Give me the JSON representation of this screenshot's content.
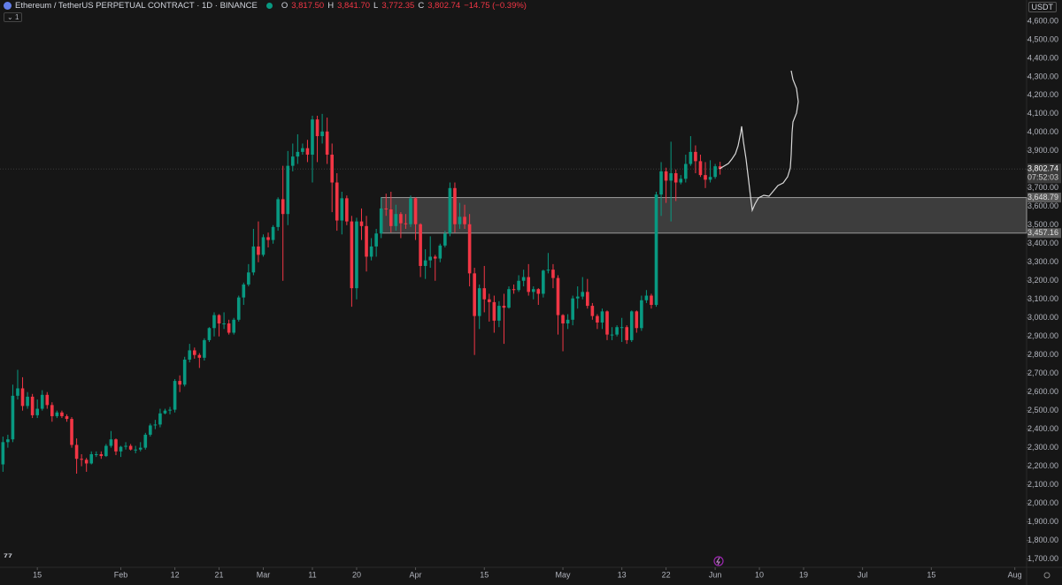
{
  "header": {
    "symbol": "Ethereum / TetherUS PERPETUAL CONTRACT · 1D · BINANCE",
    "open_label": "O",
    "open": "3,817.50",
    "high_label": "H",
    "high": "3,841.70",
    "low_label": "L",
    "low": "3,772.35",
    "close_label": "C",
    "close": "3,802.74",
    "change": "−14.75 (−0.39%)",
    "indicator_count": "1",
    "currency": "USDT"
  },
  "chart_data": {
    "type": "candlestick",
    "up_color": "#089981",
    "down_color": "#f23645",
    "x": [
      8,
      9,
      10,
      11,
      12,
      13,
      14,
      15,
      16,
      17,
      18,
      19,
      20,
      21,
      22,
      23,
      24,
      25,
      26,
      27,
      28,
      29,
      30,
      31,
      32,
      33,
      34,
      35,
      36,
      37,
      38,
      39,
      40,
      41,
      42,
      43,
      44,
      45,
      46,
      47,
      48,
      49,
      50,
      51,
      52,
      53,
      54,
      55,
      56,
      57,
      58,
      59,
      60,
      61,
      62,
      63,
      64,
      65,
      66,
      67,
      68,
      69,
      70,
      71,
      72,
      73,
      74,
      75,
      76,
      77,
      78,
      79,
      80,
      81,
      82,
      83,
      84,
      85,
      86,
      87,
      88,
      89,
      90,
      91,
      92,
      93,
      94,
      95,
      96,
      97,
      98,
      99,
      100,
      101,
      102,
      103,
      104,
      105,
      106,
      107,
      108,
      109,
      110,
      111,
      112,
      113,
      114,
      115,
      116,
      117,
      118,
      119,
      120,
      121,
      122,
      123,
      124,
      125,
      126,
      127,
      128,
      129,
      130,
      131,
      132,
      133,
      134,
      135,
      136,
      137,
      138,
      139,
      140,
      141,
      142,
      143,
      144,
      145,
      146,
      147,
      148,
      149,
      150,
      151,
      152,
      153,
      154
    ],
    "ohlc": [
      [
        2210,
        2360,
        2170,
        2330
      ],
      [
        2330,
        2370,
        2300,
        2345
      ],
      [
        2345,
        2640,
        2330,
        2580
      ],
      [
        2580,
        2720,
        2560,
        2620
      ],
      [
        2620,
        2680,
        2500,
        2525
      ],
      [
        2525,
        2600,
        2510,
        2575
      ],
      [
        2575,
        2590,
        2460,
        2475
      ],
      [
        2475,
        2560,
        2460,
        2510
      ],
      [
        2510,
        2610,
        2500,
        2585
      ],
      [
        2585,
        2600,
        2510,
        2530
      ],
      [
        2530,
        2545,
        2440,
        2470
      ],
      [
        2470,
        2500,
        2460,
        2490
      ],
      [
        2490,
        2500,
        2460,
        2470
      ],
      [
        2470,
        2480,
        2440,
        2455
      ],
      [
        2455,
        2465,
        2300,
        2315
      ],
      [
        2315,
        2350,
        2160,
        2240
      ],
      [
        2240,
        2265,
        2200,
        2235
      ],
      [
        2235,
        2245,
        2170,
        2215
      ],
      [
        2215,
        2280,
        2210,
        2265
      ],
      [
        2265,
        2280,
        2250,
        2265
      ],
      [
        2265,
        2280,
        2240,
        2255
      ],
      [
        2255,
        2320,
        2250,
        2310
      ],
      [
        2310,
        2390,
        2300,
        2345
      ],
      [
        2345,
        2350,
        2260,
        2280
      ],
      [
        2280,
        2310,
        2250,
        2305
      ],
      [
        2305,
        2330,
        2290,
        2310
      ],
      [
        2310,
        2320,
        2285,
        2290
      ],
      [
        2290,
        2310,
        2270,
        2290
      ],
      [
        2290,
        2330,
        2280,
        2300
      ],
      [
        2300,
        2380,
        2290,
        2370
      ],
      [
        2370,
        2430,
        2360,
        2420
      ],
      [
        2420,
        2450,
        2400,
        2425
      ],
      [
        2425,
        2510,
        2410,
        2485
      ],
      [
        2485,
        2510,
        2480,
        2500
      ],
      [
        2500,
        2520,
        2480,
        2505
      ],
      [
        2505,
        2670,
        2490,
        2660
      ],
      [
        2660,
        2690,
        2600,
        2640
      ],
      [
        2640,
        2790,
        2630,
        2775
      ],
      [
        2775,
        2860,
        2760,
        2825
      ],
      [
        2825,
        2840,
        2780,
        2800
      ],
      [
        2800,
        2810,
        2730,
        2785
      ],
      [
        2785,
        2890,
        2770,
        2880
      ],
      [
        2880,
        2950,
        2870,
        2945
      ],
      [
        2945,
        3030,
        2900,
        3015
      ],
      [
        3015,
        3020,
        2900,
        2970
      ],
      [
        2970,
        3030,
        2940,
        2970
      ],
      [
        2970,
        2990,
        2910,
        2920
      ],
      [
        2920,
        3000,
        2910,
        2990
      ],
      [
        2990,
        3120,
        2980,
        3110
      ],
      [
        3110,
        3190,
        3070,
        3180
      ],
      [
        3180,
        3290,
        3170,
        3245
      ],
      [
        3245,
        3480,
        3230,
        3385
      ],
      [
        3385,
        3520,
        3300,
        3340
      ],
      [
        3340,
        3450,
        3330,
        3435
      ],
      [
        3435,
        3460,
        3380,
        3420
      ],
      [
        3420,
        3500,
        3400,
        3490
      ],
      [
        3490,
        3650,
        3470,
        3640
      ],
      [
        3640,
        3820,
        3200,
        3560
      ],
      [
        3560,
        3900,
        3500,
        3820
      ],
      [
        3820,
        3940,
        3790,
        3870
      ],
      [
        3870,
        3990,
        3830,
        3895
      ],
      [
        3895,
        3940,
        3880,
        3915
      ],
      [
        3915,
        3960,
        3840,
        3880
      ],
      [
        3880,
        4090,
        3730,
        4070
      ],
      [
        4070,
        4090,
        3840,
        3980
      ],
      [
        3980,
        4100,
        3940,
        4005
      ],
      [
        4005,
        4080,
        3830,
        3880
      ],
      [
        3880,
        3940,
        3570,
        3730
      ],
      [
        3730,
        3780,
        3470,
        3525
      ],
      [
        3525,
        3680,
        3450,
        3645
      ],
      [
        3645,
        3660,
        3500,
        3520
      ],
      [
        3520,
        3550,
        3060,
        3160
      ],
      [
        3160,
        3540,
        3100,
        3520
      ],
      [
        3520,
        3590,
        3420,
        3495
      ],
      [
        3495,
        3550,
        3250,
        3330
      ],
      [
        3330,
        3430,
        3310,
        3385
      ],
      [
        3385,
        3480,
        3330,
        3455
      ],
      [
        3455,
        3650,
        3430,
        3590
      ],
      [
        3590,
        3670,
        3550,
        3585
      ],
      [
        3585,
        3680,
        3460,
        3495
      ],
      [
        3495,
        3610,
        3470,
        3560
      ],
      [
        3560,
        3570,
        3430,
        3510
      ],
      [
        3510,
        3560,
        3480,
        3505
      ],
      [
        3505,
        3660,
        3490,
        3645
      ],
      [
        3645,
        3650,
        3420,
        3505
      ],
      [
        3505,
        3510,
        3220,
        3280
      ],
      [
        3280,
        3370,
        3210,
        3310
      ],
      [
        3310,
        3440,
        3270,
        3330
      ],
      [
        3330,
        3340,
        3200,
        3320
      ],
      [
        3320,
        3400,
        3300,
        3390
      ],
      [
        3390,
        3470,
        3380,
        3455
      ],
      [
        3455,
        3730,
        3440,
        3700
      ],
      [
        3700,
        3730,
        3460,
        3505
      ],
      [
        3505,
        3620,
        3480,
        3545
      ],
      [
        3545,
        3610,
        3480,
        3505
      ],
      [
        3505,
        3560,
        3170,
        3240
      ],
      [
        3240,
        3270,
        2800,
        3010
      ],
      [
        3010,
        3180,
        2940,
        3160
      ],
      [
        3160,
        3280,
        3030,
        3100
      ],
      [
        3100,
        3130,
        2980,
        3085
      ],
      [
        3085,
        3120,
        2920,
        2985
      ],
      [
        2985,
        3090,
        2950,
        3065
      ],
      [
        3065,
        3130,
        2860,
        3055
      ],
      [
        3055,
        3170,
        3050,
        3155
      ],
      [
        3155,
        3180,
        3130,
        3150
      ],
      [
        3150,
        3230,
        3140,
        3200
      ],
      [
        3200,
        3260,
        3170,
        3220
      ],
      [
        3220,
        3290,
        3120,
        3140
      ],
      [
        3140,
        3170,
        3100,
        3155
      ],
      [
        3155,
        3160,
        3070,
        3130
      ],
      [
        3130,
        3260,
        3110,
        3255
      ],
      [
        3255,
        3350,
        3240,
        3260
      ],
      [
        3260,
        3290,
        3160,
        3215
      ],
      [
        3215,
        3230,
        2910,
        3015
      ],
      [
        3015,
        3020,
        2820,
        2970
      ],
      [
        2970,
        3020,
        2940,
        2990
      ],
      [
        2990,
        3120,
        2960,
        3105
      ],
      [
        3105,
        3170,
        3050,
        3115
      ],
      [
        3115,
        3220,
        3100,
        3140
      ],
      [
        3140,
        3210,
        3050,
        3065
      ],
      [
        3065,
        3080,
        2990,
        3010
      ],
      [
        3010,
        3020,
        2940,
        2975
      ],
      [
        2975,
        3050,
        2940,
        3035
      ],
      [
        3035,
        3040,
        2880,
        2910
      ],
      [
        2910,
        2950,
        2880,
        2910
      ],
      [
        2910,
        2960,
        2900,
        2950
      ],
      [
        2950,
        3000,
        2870,
        2950
      ],
      [
        2950,
        2960,
        2860,
        2880
      ],
      [
        2880,
        3040,
        2870,
        3035
      ],
      [
        3035,
        3040,
        2920,
        2945
      ],
      [
        2945,
        3120,
        2930,
        3095
      ],
      [
        3095,
        3150,
        3080,
        3120
      ],
      [
        3120,
        3130,
        3050,
        3070
      ],
      [
        3070,
        3680,
        3060,
        3665
      ],
      [
        3665,
        3840,
        3550,
        3790
      ],
      [
        3790,
        3810,
        3620,
        3740
      ],
      [
        3740,
        3950,
        3520,
        3780
      ],
      [
        3780,
        3800,
        3630,
        3730
      ],
      [
        3730,
        3770,
        3720,
        3750
      ],
      [
        3750,
        3880,
        3730,
        3830
      ],
      [
        3830,
        3980,
        3820,
        3895
      ],
      [
        3895,
        3930,
        3780,
        3845
      ],
      [
        3845,
        3880,
        3760,
        3770
      ],
      [
        3770,
        3840,
        3700,
        3745
      ],
      [
        3745,
        3850,
        3730,
        3760
      ],
      [
        3760,
        3830,
        3750,
        3817.5
      ],
      [
        3817.5,
        3841.7,
        3772.35,
        3802.74
      ]
    ],
    "xlim": [
      7.4,
      216.4
    ],
    "xticks": [
      {
        "value": 15,
        "label": "15"
      },
      {
        "value": 32,
        "label": "Feb"
      },
      {
        "value": 43,
        "label": "12"
      },
      {
        "value": 52,
        "label": "21"
      },
      {
        "value": 61,
        "label": "Mar"
      },
      {
        "value": 71,
        "label": "11"
      },
      {
        "value": 80,
        "label": "20"
      },
      {
        "value": 92,
        "label": "Apr"
      },
      {
        "value": 106,
        "label": "15"
      },
      {
        "value": 122,
        "label": "May"
      },
      {
        "value": 134,
        "label": "13"
      },
      {
        "value": 143,
        "label": "22"
      },
      {
        "value": 153,
        "label": "Jun"
      },
      {
        "value": 162,
        "label": "10"
      },
      {
        "value": 171,
        "label": "19"
      },
      {
        "value": 183,
        "label": "Jul"
      },
      {
        "value": 197,
        "label": "15"
      },
      {
        "value": 214,
        "label": "Aug"
      }
    ],
    "ylim": [
      1655,
      4714
    ],
    "yticks": [
      {
        "value": 1700,
        "label": "1,700.00"
      },
      {
        "value": 1800,
        "label": "1,800.00"
      },
      {
        "value": 1900,
        "label": "1,900.00"
      },
      {
        "value": 2000,
        "label": "2,000.00"
      },
      {
        "value": 2100,
        "label": "2,100.00"
      },
      {
        "value": 2200,
        "label": "2,200.00"
      },
      {
        "value": 2300,
        "label": "2,300.00"
      },
      {
        "value": 2400,
        "label": "2,400.00"
      },
      {
        "value": 2500,
        "label": "2,500.00"
      },
      {
        "value": 2600,
        "label": "2,600.00"
      },
      {
        "value": 2700,
        "label": "2,700.00"
      },
      {
        "value": 2800,
        "label": "2,800.00"
      },
      {
        "value": 2900,
        "label": "2,900.00"
      },
      {
        "value": 3000,
        "label": "3,000.00"
      },
      {
        "value": 3100,
        "label": "3,100.00"
      },
      {
        "value": 3200,
        "label": "3,200.00"
      },
      {
        "value": 3300,
        "label": "3,300.00"
      },
      {
        "value": 3400,
        "label": "3,400.00"
      },
      {
        "value": 3500,
        "label": "3,500.00"
      },
      {
        "value": 3600,
        "label": "3,600.00"
      },
      {
        "value": 3700,
        "label": "3,700.00"
      },
      {
        "value": 3800,
        "label": "3,800.00"
      },
      {
        "value": 3900,
        "label": "3,900.00"
      },
      {
        "value": 4000,
        "label": "4,000.00"
      },
      {
        "value": 4100,
        "label": "4,100.00"
      },
      {
        "value": 4200,
        "label": "4,200.00"
      },
      {
        "value": 4300,
        "label": "4,300.00"
      },
      {
        "value": 4400,
        "label": "4,400.00"
      },
      {
        "value": 4500,
        "label": "4,500.00"
      },
      {
        "value": 4600,
        "label": "4,600.00"
      }
    ],
    "last_price": {
      "value": 3802.74,
      "label": "3,802.74"
    },
    "countdown": "07:52:03",
    "zone": {
      "x_start": 85,
      "top": {
        "value": 3648.79,
        "label": "3,648.79"
      },
      "bottom": {
        "value": 3457.16,
        "label": "3,457.16"
      }
    }
  }
}
